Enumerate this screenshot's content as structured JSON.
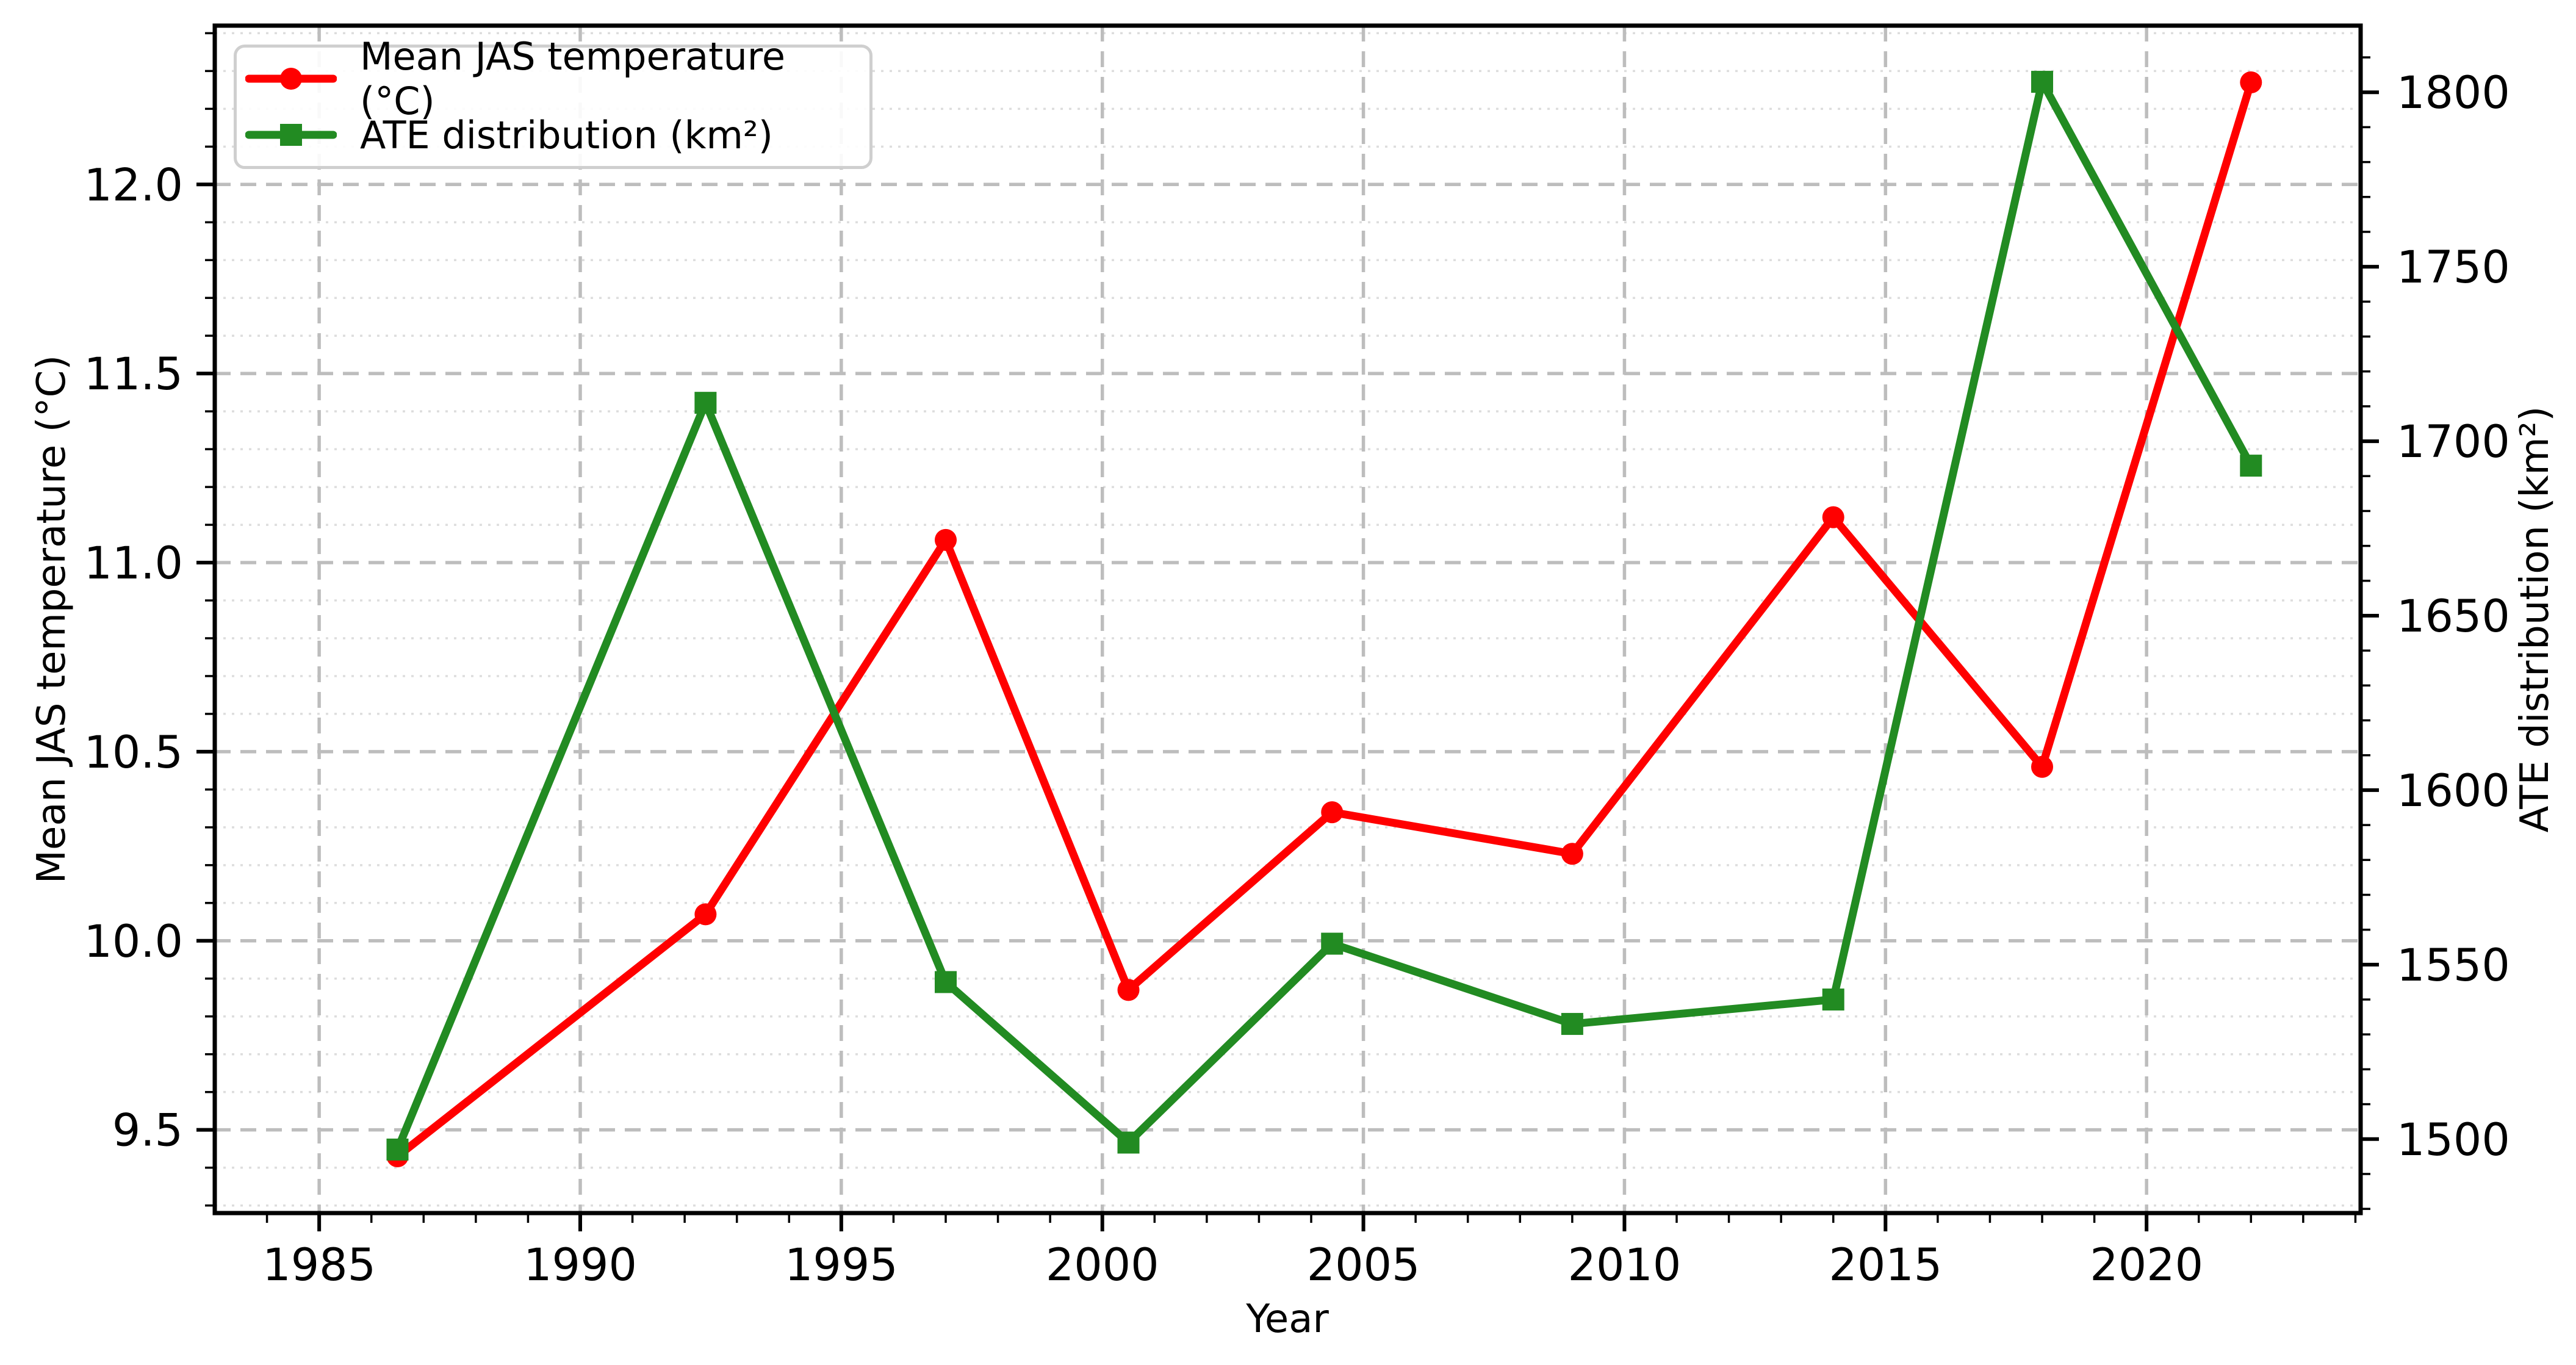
{
  "figure": {
    "background": "#ffffff",
    "spine_color": "#000000",
    "grid_major_color": "#bdbdbd",
    "grid_minor_color": "#dddddd"
  },
  "chart_data": {
    "type": "line",
    "title": "",
    "xlabel": "Year",
    "ylabel_left": "Mean JAS temperature (°C)",
    "ylabel_right": "ATE distribution (km²)",
    "x": [
      1986.5,
      1992.4,
      1997,
      2000.5,
      2004.4,
      2009,
      2014,
      2018,
      2022
    ],
    "series": [
      {
        "name": "Mean JAS temperature (°C)",
        "axis": "left",
        "color": "#ff0000",
        "marker": "circle",
        "values": [
          9.43,
          10.07,
          11.06,
          9.87,
          10.34,
          10.23,
          11.12,
          10.46,
          12.27
        ]
      },
      {
        "name": "ATE distribution (km²)",
        "axis": "right",
        "color": "#228b22",
        "marker": "square",
        "values": [
          1497,
          1711,
          1545,
          1499,
          1556,
          1533,
          1540,
          1803,
          1693
        ]
      }
    ],
    "xlim": [
      1983.0,
      2024.1
    ],
    "ylim_left": [
      9.28,
      12.42
    ],
    "ylim_right": [
      1478.8,
      1819.1
    ],
    "xticks": [
      1985,
      1990,
      1995,
      2000,
      2005,
      2010,
      2015,
      2020
    ],
    "yticks_left": [
      9.5,
      10.0,
      10.5,
      11.0,
      11.5,
      12.0
    ],
    "yticks_right": [
      1500,
      1550,
      1600,
      1650,
      1700,
      1750,
      1800
    ],
    "minor_steps": {
      "x": 1,
      "y_left": 0.1,
      "y_right": 10
    },
    "grid": {
      "major": true,
      "minor": true,
      "legend_position": "upper left"
    }
  }
}
